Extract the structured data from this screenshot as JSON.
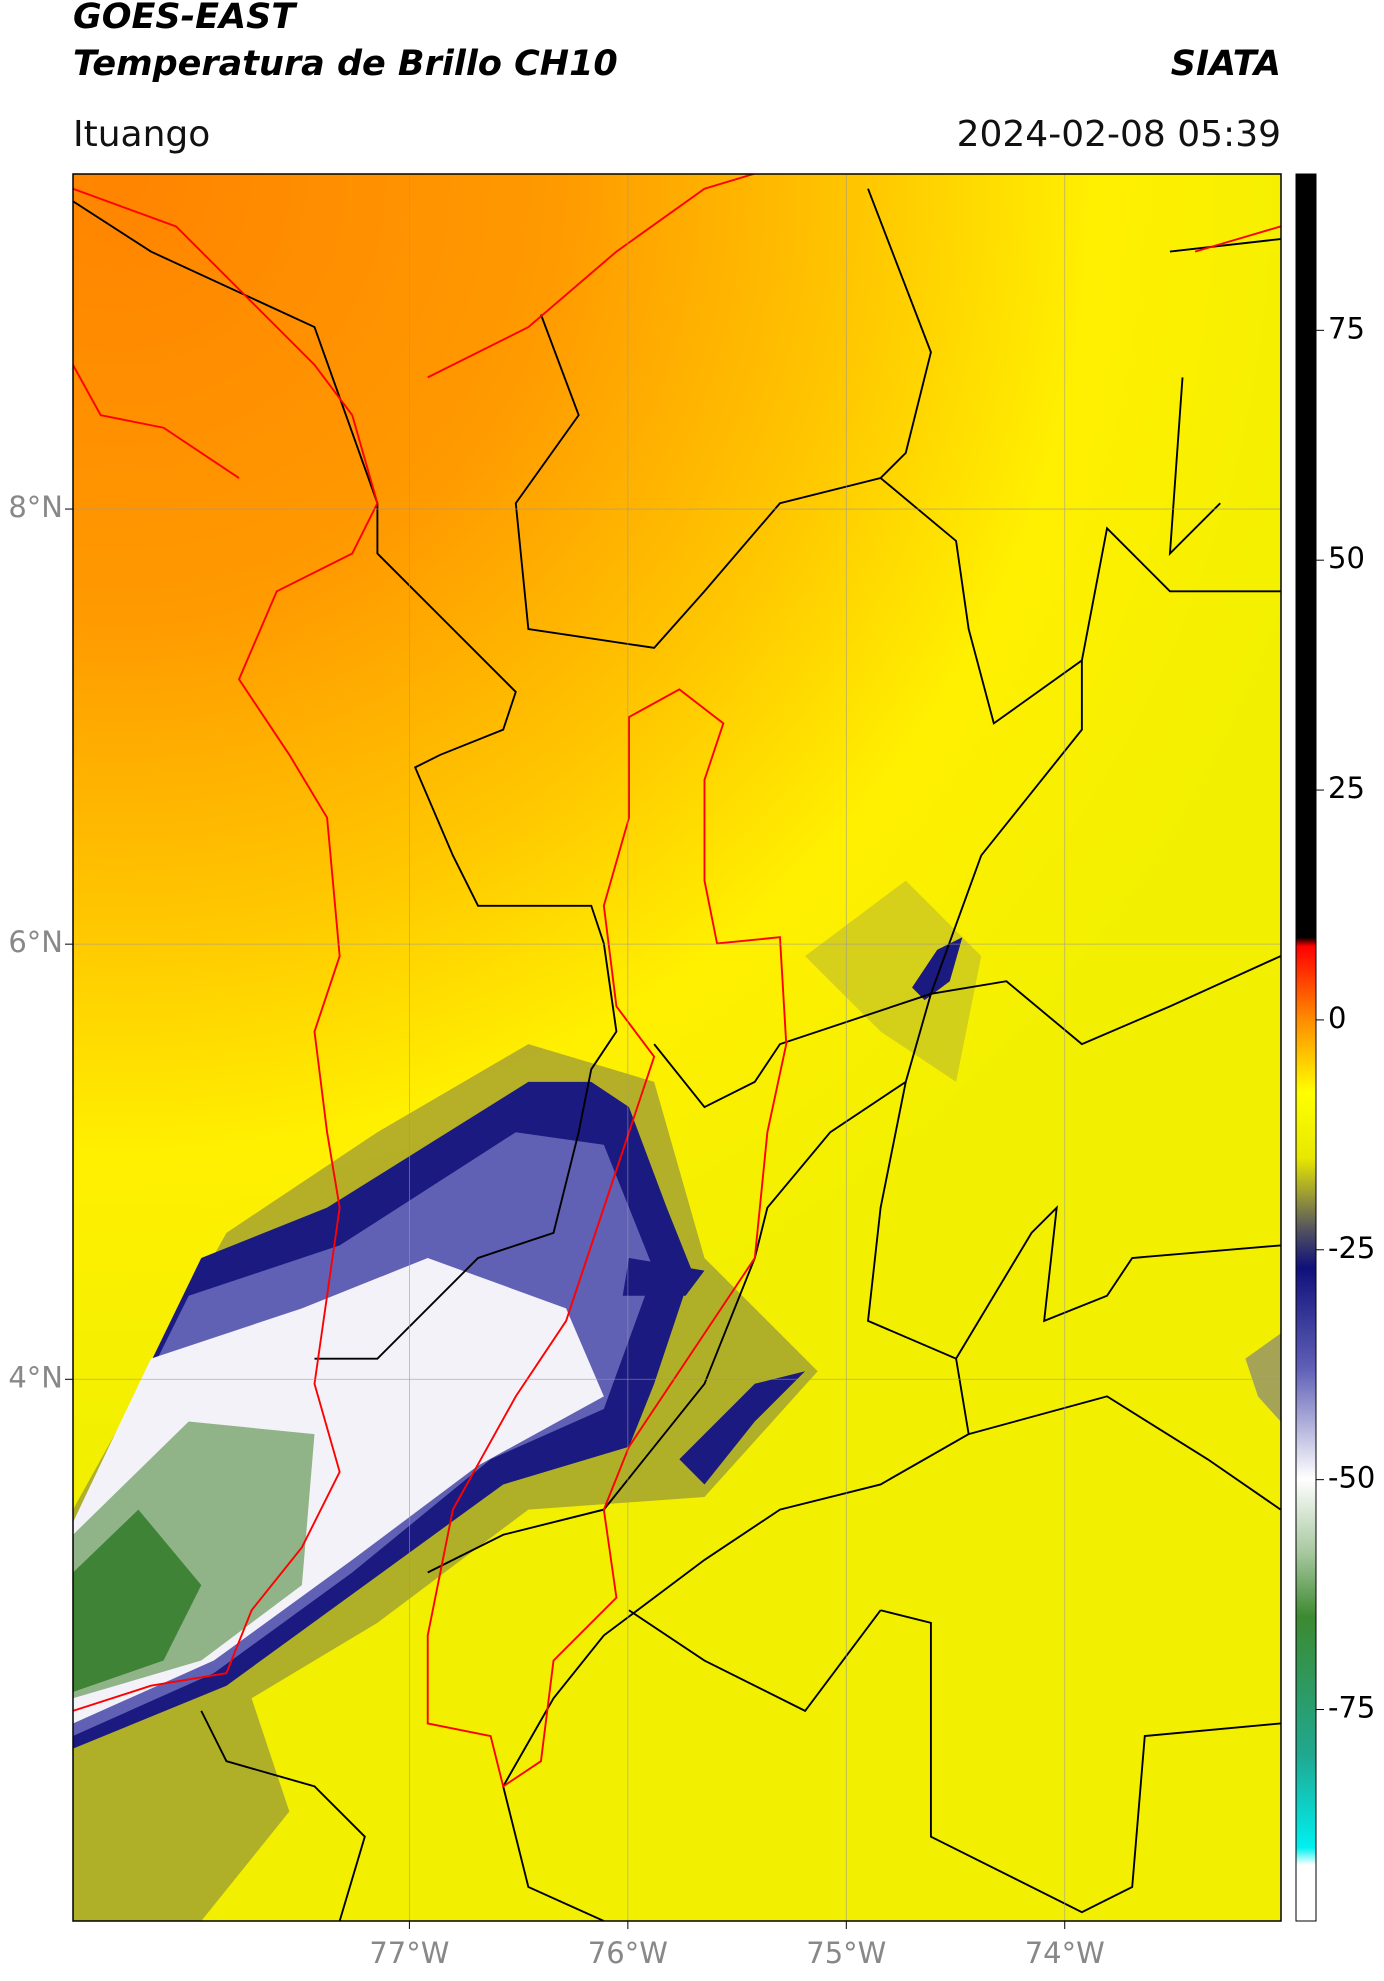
{
  "header": {
    "title": "GOES-EAST",
    "subtitle": "Temperatura de Brillo CH10",
    "source": "SIATA",
    "location": "Ituango",
    "timestamp": "2024-02-08 05:39"
  },
  "map": {
    "xlim": [
      -78.54,
      -73.01
    ],
    "ylim": [
      1.51,
      9.54
    ],
    "xticks": [
      {
        "value": -77,
        "label": "77°W"
      },
      {
        "value": -76,
        "label": "76°W"
      },
      {
        "value": -75,
        "label": "75°W"
      },
      {
        "value": -74,
        "label": "74°W"
      }
    ],
    "yticks": [
      {
        "value": 8,
        "label": "8°N"
      },
      {
        "value": 6,
        "label": "6°N"
      },
      {
        "value": 4,
        "label": "4°N"
      }
    ],
    "grid": true
  },
  "colorbar": {
    "lim": [
      -98,
      92
    ],
    "ticks": [
      75,
      50,
      25,
      0,
      -25,
      -50,
      -75
    ]
  }
}
